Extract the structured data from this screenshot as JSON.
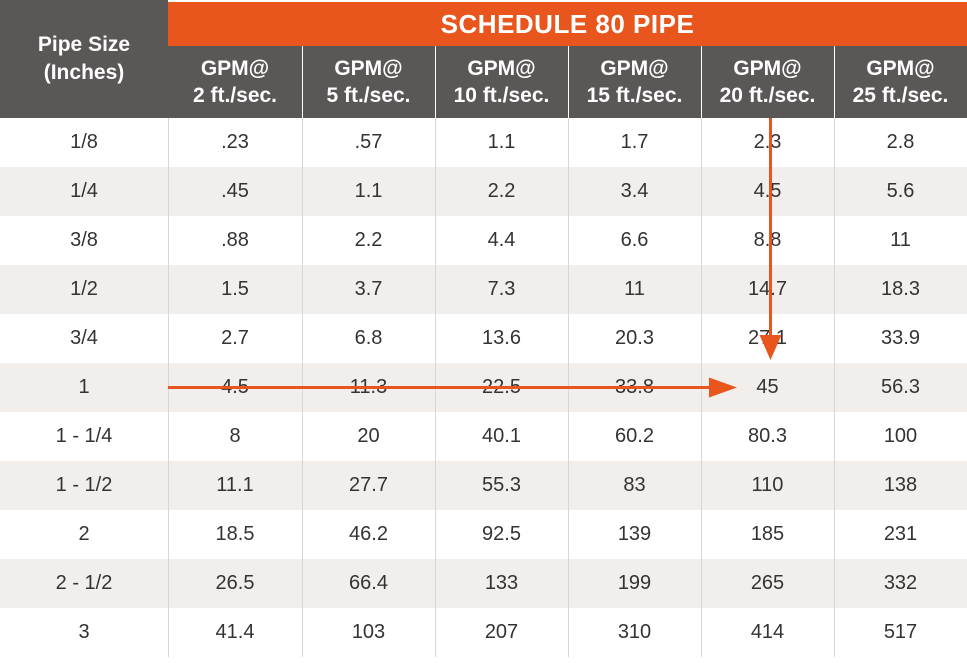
{
  "title": "SCHEDULE 80 PIPE",
  "pipe_size_header": [
    "Pipe Size",
    "(Inches)"
  ],
  "columns": [
    [
      "GPM@",
      "2 ft./sec."
    ],
    [
      "GPM@",
      "5 ft./sec."
    ],
    [
      "GPM@",
      "10 ft./sec."
    ],
    [
      "GPM@",
      "15 ft./sec."
    ],
    [
      "GPM@",
      "20 ft./sec."
    ],
    [
      "GPM@",
      "25 ft./sec."
    ]
  ],
  "rows": [
    {
      "size": "1/8",
      "values": [
        ".23",
        ".57",
        "1.1",
        "1.7",
        "2.3",
        "2.8"
      ]
    },
    {
      "size": "1/4",
      "values": [
        ".45",
        "1.1",
        "2.2",
        "3.4",
        "4.5",
        "5.6"
      ]
    },
    {
      "size": "3/8",
      "values": [
        ".88",
        "2.2",
        "4.4",
        "6.6",
        "8.8",
        "11"
      ]
    },
    {
      "size": "1/2",
      "values": [
        "1.5",
        "3.7",
        "7.3",
        "11",
        "14.7",
        "18.3"
      ]
    },
    {
      "size": "3/4",
      "values": [
        "2.7",
        "6.8",
        "13.6",
        "20.3",
        "27.1",
        "33.9"
      ]
    },
    {
      "size": "1",
      "values": [
        "4.5",
        "11.3",
        "22.5",
        "33.8",
        "45",
        "56.3"
      ]
    },
    {
      "size": "1 - 1/4",
      "values": [
        "8",
        "20",
        "40.1",
        "60.2",
        "80.3",
        "100"
      ]
    },
    {
      "size": "1 - 1/2",
      "values": [
        "11.1",
        "27.7",
        "55.3",
        "83",
        "110",
        "138"
      ]
    },
    {
      "size": "2",
      "values": [
        "18.5",
        "46.2",
        "92.5",
        "139",
        "185",
        "231"
      ]
    },
    {
      "size": "2 - 1/2",
      "values": [
        "26.5",
        "66.4",
        "133",
        "199",
        "265",
        "332"
      ]
    },
    {
      "size": "3",
      "values": [
        "41.4",
        "103",
        "207",
        "310",
        "414",
        "517"
      ]
    }
  ],
  "highlight": {
    "row_index": 5,
    "col_index": 4,
    "color": "#e8561e"
  },
  "colors": {
    "accent": "#e8561e",
    "header": "#5a5756",
    "shade": "#f1eeec",
    "grid": "#d9d6d4",
    "text": "#333333"
  }
}
